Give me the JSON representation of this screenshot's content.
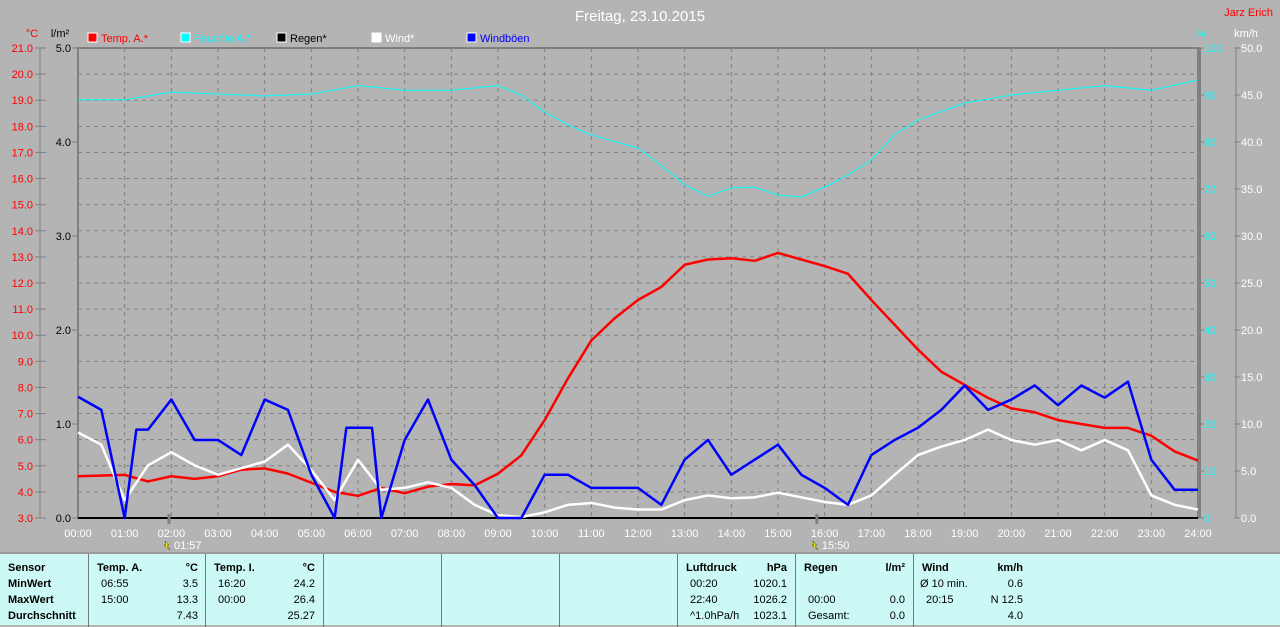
{
  "header": {
    "title": "Freitag, 23.10.2015",
    "author": "Jarz Erich"
  },
  "chart_data": {
    "type": "line",
    "title": "Freitag, 23.10.2015",
    "x_unit": "time",
    "xlim": [
      "00:00",
      "24:00"
    ],
    "x_ticks": [
      "00:00",
      "01:00",
      "02:00",
      "03:00",
      "04:00",
      "05:00",
      "06:00",
      "07:00",
      "08:00",
      "09:00",
      "10:00",
      "11:00",
      "12:00",
      "13:00",
      "14:00",
      "15:00",
      "16:00",
      "17:00",
      "18:00",
      "19:00",
      "20:00",
      "21:00",
      "22:00",
      "23:00",
      "24:00"
    ],
    "axes": {
      "temp": {
        "label": "°C",
        "range": [
          3,
          21
        ],
        "ticks": [
          "21.0",
          "20.0",
          "19.0",
          "18.0",
          "17.0",
          "16.0",
          "15.0",
          "14.0",
          "13.0",
          "12.0",
          "11.0",
          "10.0",
          "9.0",
          "8.0",
          "7.0",
          "6.0",
          "5.0",
          "4.0",
          "3.0"
        ],
        "color": "#ff0000"
      },
      "rain": {
        "label": "l/m²",
        "range": [
          0,
          5
        ],
        "ticks": [
          "5.0",
          "4.0",
          "3.0",
          "2.0",
          "1.0",
          "0.0"
        ],
        "color": "#000000"
      },
      "humidity": {
        "label": "%",
        "range": [
          0,
          100
        ],
        "ticks": [
          "100",
          "90",
          "80",
          "70",
          "60",
          "50",
          "40",
          "30",
          "20",
          "10",
          "0"
        ],
        "color": "#00ffff"
      },
      "wind": {
        "label": "km/h",
        "range": [
          0,
          50
        ],
        "ticks": [
          "50.0",
          "45.0",
          "40.0",
          "35.0",
          "30.0",
          "25.0",
          "20.0",
          "15.0",
          "10.0",
          "5.0",
          "0.0"
        ],
        "color": "#ffffff"
      }
    },
    "grid": true,
    "legend_placement": "top",
    "markers": [
      {
        "time": "01:57",
        "label": "01:57"
      },
      {
        "time": "15:50",
        "label": "15:50"
      }
    ],
    "series": [
      {
        "name": "Temp. A.*",
        "axis": "temp",
        "color": "#ff0000",
        "x": [
          0,
          1,
          1.5,
          2,
          2.5,
          3,
          3.5,
          4,
          4.5,
          5,
          5.5,
          6,
          6.5,
          7,
          7.5,
          8,
          8.5,
          9,
          9.5,
          10,
          10.5,
          11,
          11.5,
          12,
          12.5,
          13,
          13.5,
          14,
          14.5,
          15,
          15.5,
          16,
          16.5,
          17,
          17.5,
          18,
          18.5,
          19,
          19.5,
          20,
          20.5,
          21,
          21.5,
          22,
          22.5,
          23,
          23.5,
          24
        ],
        "values": [
          4.6,
          4.65,
          4.4,
          4.6,
          4.5,
          4.6,
          4.85,
          4.9,
          4.7,
          4.35,
          4.0,
          3.85,
          4.15,
          3.95,
          4.2,
          4.3,
          4.25,
          4.7,
          5.4,
          6.75,
          8.35,
          9.8,
          10.65,
          11.35,
          11.85,
          12.7,
          12.9,
          12.95,
          12.85,
          13.15,
          12.9,
          12.65,
          12.35,
          11.35,
          10.4,
          9.45,
          8.6,
          8.1,
          7.6,
          7.2,
          7.05,
          6.75,
          6.6,
          6.45,
          6.45,
          6.15,
          5.55,
          5.2
        ]
      },
      {
        "name": "Feuchte A.*",
        "axis": "humidity",
        "color": "#00ffff",
        "x": [
          0,
          1,
          2,
          3,
          4,
          5,
          6,
          7,
          8,
          9,
          9.5,
          10,
          10.5,
          11,
          12,
          12.5,
          13,
          13.5,
          14,
          14.5,
          15,
          15.5,
          16,
          16.5,
          17,
          17.5,
          18,
          19,
          20,
          21,
          22,
          23,
          24
        ],
        "values": [
          89,
          89,
          90.6,
          90.2,
          89.8,
          90.2,
          92,
          91,
          91,
          92,
          90,
          86.4,
          83.6,
          81.5,
          78.7,
          75,
          70.9,
          68.5,
          70.2,
          70.4,
          68.7,
          68.3,
          70.4,
          73,
          76.2,
          81.5,
          84.7,
          88.3,
          90,
          91,
          92,
          91,
          93.2
        ]
      },
      {
        "name": "Regen*",
        "axis": "rain",
        "color": "#000000",
        "x": [
          0,
          24
        ],
        "values": [
          0,
          0
        ]
      },
      {
        "name": "Wind*",
        "axis": "wind",
        "color": "#ffffff",
        "x": [
          0,
          0.5,
          1,
          1.5,
          2,
          2.5,
          3,
          3.5,
          4,
          4.5,
          5,
          5.5,
          6,
          6.5,
          7,
          7.5,
          8,
          8.5,
          9,
          9.5,
          10,
          10.5,
          11,
          11.5,
          12,
          12.5,
          13,
          13.5,
          14,
          14.5,
          15,
          15.5,
          16,
          16.5,
          17,
          17.5,
          18,
          18.5,
          19,
          19.5,
          20,
          20.5,
          21,
          21.5,
          22,
          22.5,
          23,
          23.5,
          24
        ],
        "values": [
          9.1,
          7.8,
          1.9,
          5.6,
          7,
          5.6,
          4.6,
          5.3,
          6,
          7.8,
          5.1,
          1.9,
          6.2,
          3,
          3.2,
          3.8,
          3.2,
          1.4,
          0.3,
          0.1,
          0.6,
          1.4,
          1.6,
          1.1,
          0.9,
          0.9,
          1.9,
          2.4,
          2.1,
          2.2,
          2.7,
          2.2,
          1.7,
          1.4,
          2.4,
          4.6,
          6.7,
          7.6,
          8.3,
          9.4,
          8.3,
          7.8,
          8.3,
          7.2,
          8.3,
          7.2,
          2.4,
          1.4,
          0.9
        ]
      },
      {
        "name": "Windböen",
        "axis": "wind",
        "color": "#0000ff",
        "x": [
          0,
          0.5,
          1,
          1.25,
          1.5,
          2,
          2.5,
          3,
          3.5,
          4,
          4.5,
          5,
          5.5,
          5.75,
          6.3,
          6.5,
          7,
          7.5,
          8,
          8.5,
          9,
          9.5,
          10,
          10.5,
          11,
          12,
          12.5,
          13,
          13.5,
          14,
          14.5,
          15,
          15.5,
          16,
          16.5,
          17,
          17.5,
          18,
          18.5,
          19,
          19.5,
          20,
          20.5,
          21,
          21.5,
          22,
          22.5,
          23,
          23.5,
          24
        ],
        "values": [
          12.9,
          11.5,
          0,
          9.4,
          9.4,
          12.6,
          8.3,
          8.3,
          6.7,
          12.6,
          11.5,
          4.6,
          0,
          9.6,
          9.6,
          0,
          8.3,
          12.6,
          6.2,
          3.5,
          0,
          0,
          4.6,
          4.6,
          3.2,
          3.2,
          1.4,
          6.2,
          8.3,
          4.6,
          6.2,
          7.8,
          4.6,
          3.2,
          1.4,
          6.7,
          8.3,
          9.6,
          11.5,
          14.1,
          11.5,
          12.6,
          14.1,
          12,
          14.1,
          12.8,
          14.5,
          6.2,
          3,
          3
        ]
      }
    ]
  },
  "footer": {
    "sensor": {
      "header": "Sensor",
      "rows": [
        "MinWert",
        "MaxWert",
        "Durchschnitt"
      ]
    },
    "temp_a": {
      "header": "Temp. A.",
      "unit": "°C",
      "times": [
        "06:55",
        "15:00",
        ""
      ],
      "values": [
        "3.5",
        "13.3",
        "7.43"
      ]
    },
    "temp_i": {
      "header": "Temp. I.",
      "unit": "°C",
      "times": [
        "16:20",
        "00:00",
        ""
      ],
      "values": [
        "24.2",
        "26.4",
        "25.27"
      ]
    },
    "pressure": {
      "header": "Luftdruck",
      "unit": "hPa",
      "times": [
        "00:20",
        "22:40",
        "^1.0hPa/h"
      ],
      "values": [
        "1020.1",
        "1026.2",
        "1023.1"
      ]
    },
    "rain": {
      "header": "Regen",
      "unit": "l/m²",
      "times": [
        "",
        "00:00",
        "Gesamt:"
      ],
      "values": [
        "",
        "0.0",
        "0.0"
      ]
    },
    "wind": {
      "header": "Wind",
      "unit": "km/h",
      "times": [
        "Ø 10 min.",
        "20:15",
        ""
      ],
      "values": [
        "0.6",
        "N 12.5",
        "4.0"
      ]
    }
  }
}
